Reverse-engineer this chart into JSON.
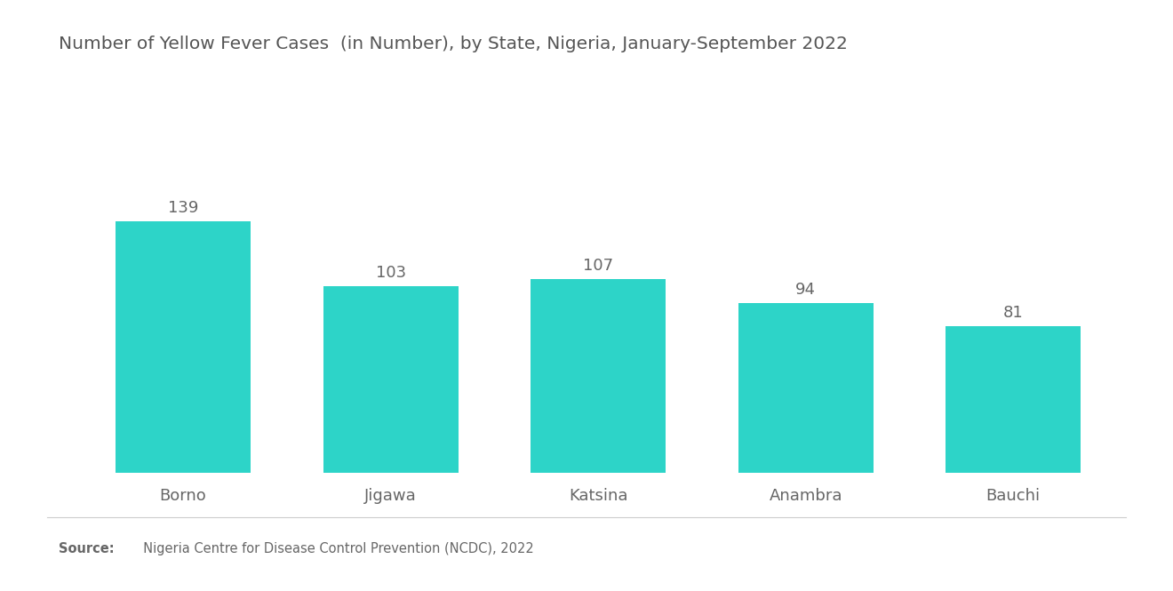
{
  "title": "Number of Yellow Fever Cases  (in Number), by State, Nigeria, January-September 2022",
  "categories": [
    "Borno",
    "Jigawa",
    "Katsina",
    "Anambra",
    "Bauchi"
  ],
  "values": [
    139,
    103,
    107,
    94,
    81
  ],
  "bar_color": "#2DD4C8",
  "background_color": "#ffffff",
  "title_fontsize": 14.5,
  "label_fontsize": 13,
  "value_fontsize": 13,
  "source_bold": "Source:",
  "source_rest": "  Nigeria Centre for Disease Control Prevention (NCDC), 2022",
  "ylim": [
    0,
    170
  ],
  "bar_width": 0.65
}
